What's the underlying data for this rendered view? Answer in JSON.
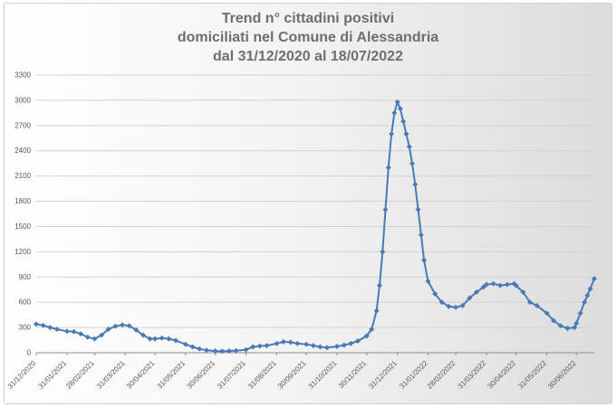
{
  "chart_data": {
    "type": "line",
    "title": [
      "Trend n° cittadini positivi",
      "domiciliati nel Comune di Alessandria",
      "dal 31/12/2020 al 18/07/2022"
    ],
    "xlabel": "",
    "ylabel": "",
    "ylim": [
      0,
      3300
    ],
    "y_ticks": [
      0,
      300,
      600,
      900,
      1200,
      1500,
      1800,
      2100,
      2400,
      2700,
      3000,
      3300
    ],
    "x_range": [
      "2020-12-31",
      "2022-07-18"
    ],
    "x_ticks": [
      "31/12/2020",
      "31/01/2021",
      "28/02/2021",
      "31/03/2021",
      "30/04/2021",
      "31/05/2021",
      "30/06/2021",
      "31/07/2021",
      "31/08/2021",
      "30/09/2021",
      "31/10/2021",
      "30/11/2021",
      "31/12/2021",
      "31/01/2022",
      "28/02/2022",
      "31/03/2022",
      "30/04/2022",
      "31/05/2022",
      "30/06/2022"
    ],
    "grid": "horizontal",
    "legend": "none",
    "series_color": "#4a7ab5",
    "series": [
      {
        "points": [
          [
            "2020-12-31",
            340
          ],
          [
            "2021-01-07",
            325
          ],
          [
            "2021-01-14",
            300
          ],
          [
            "2021-01-21",
            280
          ],
          [
            "2021-01-31",
            255
          ],
          [
            "2021-02-07",
            250
          ],
          [
            "2021-02-14",
            225
          ],
          [
            "2021-02-21",
            185
          ],
          [
            "2021-02-28",
            165
          ],
          [
            "2021-03-07",
            210
          ],
          [
            "2021-03-14",
            280
          ],
          [
            "2021-03-21",
            315
          ],
          [
            "2021-03-28",
            330
          ],
          [
            "2021-04-04",
            320
          ],
          [
            "2021-04-11",
            270
          ],
          [
            "2021-04-18",
            210
          ],
          [
            "2021-04-25",
            165
          ],
          [
            "2021-04-30",
            165
          ],
          [
            "2021-05-07",
            175
          ],
          [
            "2021-05-14",
            165
          ],
          [
            "2021-05-21",
            145
          ],
          [
            "2021-05-31",
            100
          ],
          [
            "2021-06-07",
            70
          ],
          [
            "2021-06-14",
            45
          ],
          [
            "2021-06-21",
            30
          ],
          [
            "2021-06-30",
            20
          ],
          [
            "2021-07-07",
            18
          ],
          [
            "2021-07-14",
            20
          ],
          [
            "2021-07-21",
            25
          ],
          [
            "2021-07-31",
            35
          ],
          [
            "2021-08-07",
            70
          ],
          [
            "2021-08-14",
            80
          ],
          [
            "2021-08-21",
            85
          ],
          [
            "2021-08-31",
            110
          ],
          [
            "2021-09-07",
            130
          ],
          [
            "2021-09-14",
            125
          ],
          [
            "2021-09-21",
            110
          ],
          [
            "2021-09-30",
            100
          ],
          [
            "2021-10-07",
            85
          ],
          [
            "2021-10-14",
            70
          ],
          [
            "2021-10-21",
            60
          ],
          [
            "2021-10-31",
            75
          ],
          [
            "2021-11-07",
            90
          ],
          [
            "2021-11-14",
            110
          ],
          [
            "2021-11-21",
            140
          ],
          [
            "2021-11-30",
            200
          ],
          [
            "2021-12-05",
            280
          ],
          [
            "2021-12-10",
            500
          ],
          [
            "2021-12-13",
            800
          ],
          [
            "2021-12-16",
            1200
          ],
          [
            "2021-12-19",
            1700
          ],
          [
            "2021-12-22",
            2200
          ],
          [
            "2021-12-25",
            2600
          ],
          [
            "2021-12-28",
            2850
          ],
          [
            "2021-12-31",
            2980
          ],
          [
            "2022-01-03",
            2900
          ],
          [
            "2022-01-06",
            2750
          ],
          [
            "2022-01-09",
            2600
          ],
          [
            "2022-01-12",
            2450
          ],
          [
            "2022-01-15",
            2250
          ],
          [
            "2022-01-18",
            2000
          ],
          [
            "2022-01-21",
            1700
          ],
          [
            "2022-01-24",
            1400
          ],
          [
            "2022-01-27",
            1100
          ],
          [
            "2022-01-31",
            850
          ],
          [
            "2022-02-07",
            700
          ],
          [
            "2022-02-14",
            600
          ],
          [
            "2022-02-21",
            550
          ],
          [
            "2022-02-28",
            540
          ],
          [
            "2022-03-07",
            560
          ],
          [
            "2022-03-14",
            650
          ],
          [
            "2022-03-21",
            720
          ],
          [
            "2022-03-28",
            780
          ],
          [
            "2022-03-31",
            810
          ],
          [
            "2022-04-07",
            820
          ],
          [
            "2022-04-14",
            800
          ],
          [
            "2022-04-21",
            810
          ],
          [
            "2022-04-28",
            820
          ],
          [
            "2022-04-30",
            800
          ],
          [
            "2022-05-07",
            720
          ],
          [
            "2022-05-14",
            600
          ],
          [
            "2022-05-21",
            560
          ],
          [
            "2022-05-31",
            470
          ],
          [
            "2022-06-07",
            380
          ],
          [
            "2022-06-14",
            320
          ],
          [
            "2022-06-21",
            290
          ],
          [
            "2022-06-28",
            300
          ],
          [
            "2022-06-30",
            350
          ],
          [
            "2022-07-04",
            470
          ],
          [
            "2022-07-08",
            600
          ],
          [
            "2022-07-11",
            680
          ],
          [
            "2022-07-14",
            760
          ],
          [
            "2022-07-18",
            880
          ]
        ]
      }
    ]
  }
}
